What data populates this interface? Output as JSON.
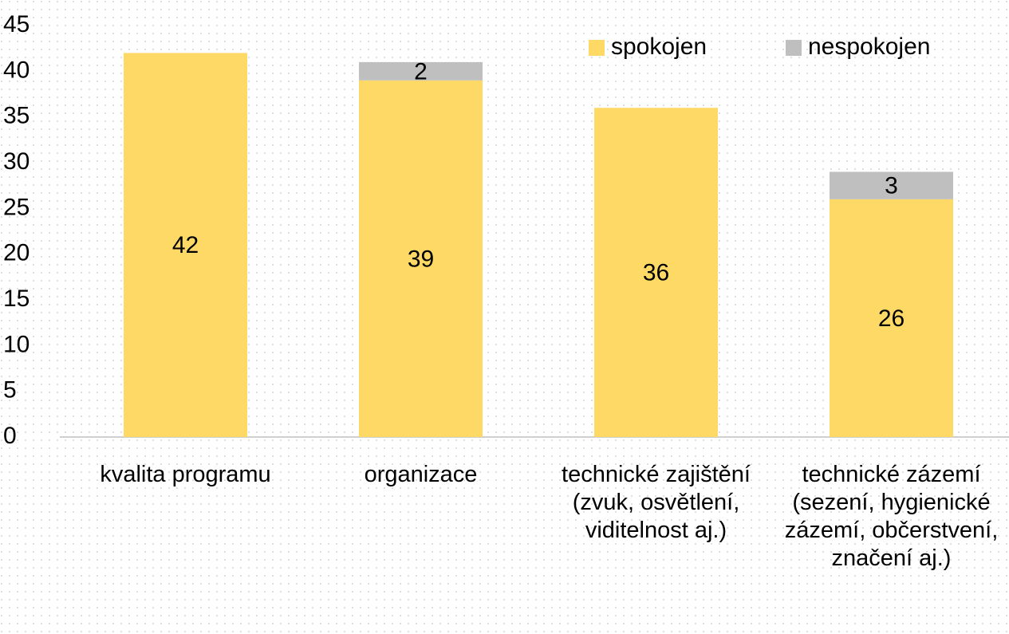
{
  "chart_data": {
    "type": "stacked_bar",
    "categories": [
      "kvalita programu",
      "organizace",
      "technické zajištění (zvuk, osvětlení, viditelnost aj.)",
      "technické zázemí (sezení, hygienické zázemí, občerstvení, značení aj.)"
    ],
    "series": [
      {
        "name": "spokojen",
        "color": "#FFD966",
        "values": [
          42,
          39,
          36,
          26
        ]
      },
      {
        "name": "nespokojen",
        "color": "#BFBFBF",
        "values": [
          null,
          2,
          null,
          3
        ]
      }
    ],
    "ylim": [
      0,
      45
    ],
    "yticks": [
      0,
      5,
      10,
      15,
      20,
      25,
      30,
      35,
      40,
      45
    ],
    "legend": "top-right",
    "grid": false
  }
}
